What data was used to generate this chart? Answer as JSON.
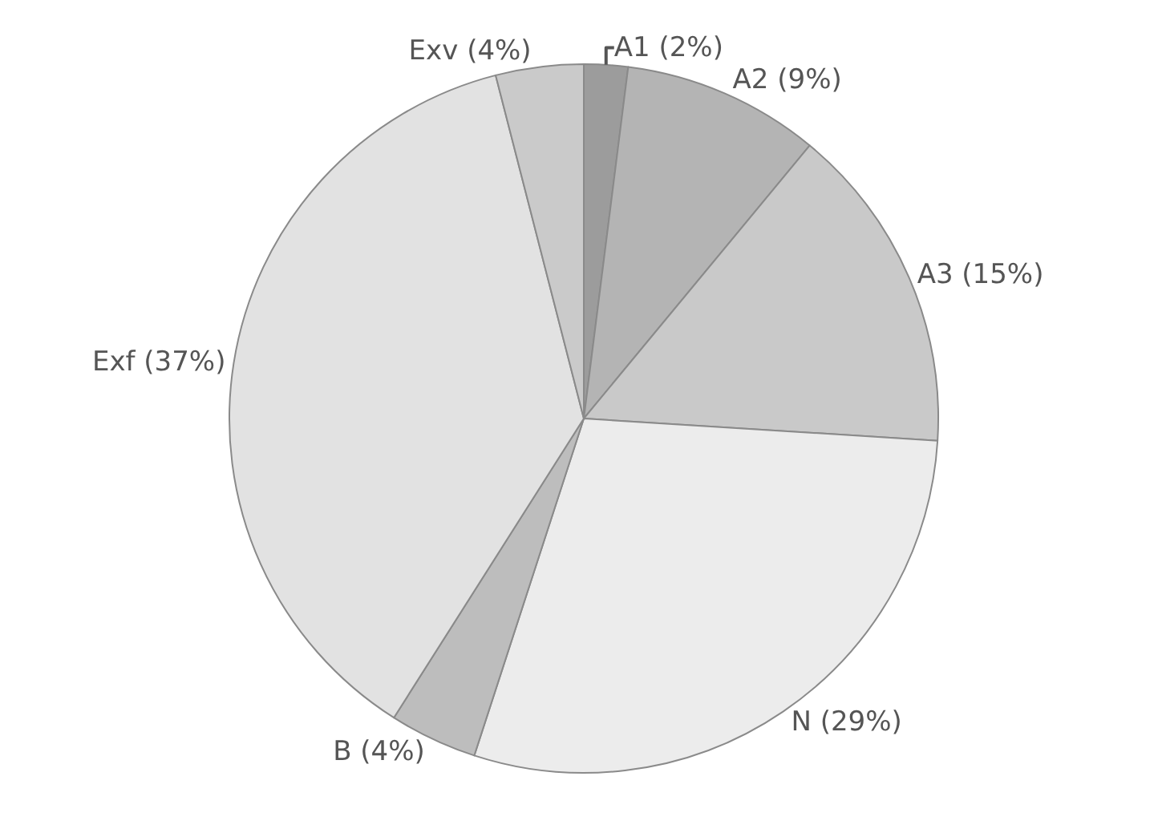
{
  "chart_data": {
    "type": "pie",
    "categories": [
      "A1",
      "A2",
      "A3",
      "N",
      "B",
      "Exf",
      "Exv"
    ],
    "values": [
      2,
      9,
      15,
      29,
      4,
      37,
      4
    ],
    "colors": [
      "#9c9c9c",
      "#b4b4b4",
      "#c9c9c9",
      "#ececec",
      "#bdbdbd",
      "#e2e2e2",
      "#cacaca"
    ],
    "value_labels": [
      "(2%)",
      "(9%)",
      "(15%)",
      "(29%)",
      "(4%)",
      "(37%)",
      "(4%)"
    ],
    "legend": false
  }
}
